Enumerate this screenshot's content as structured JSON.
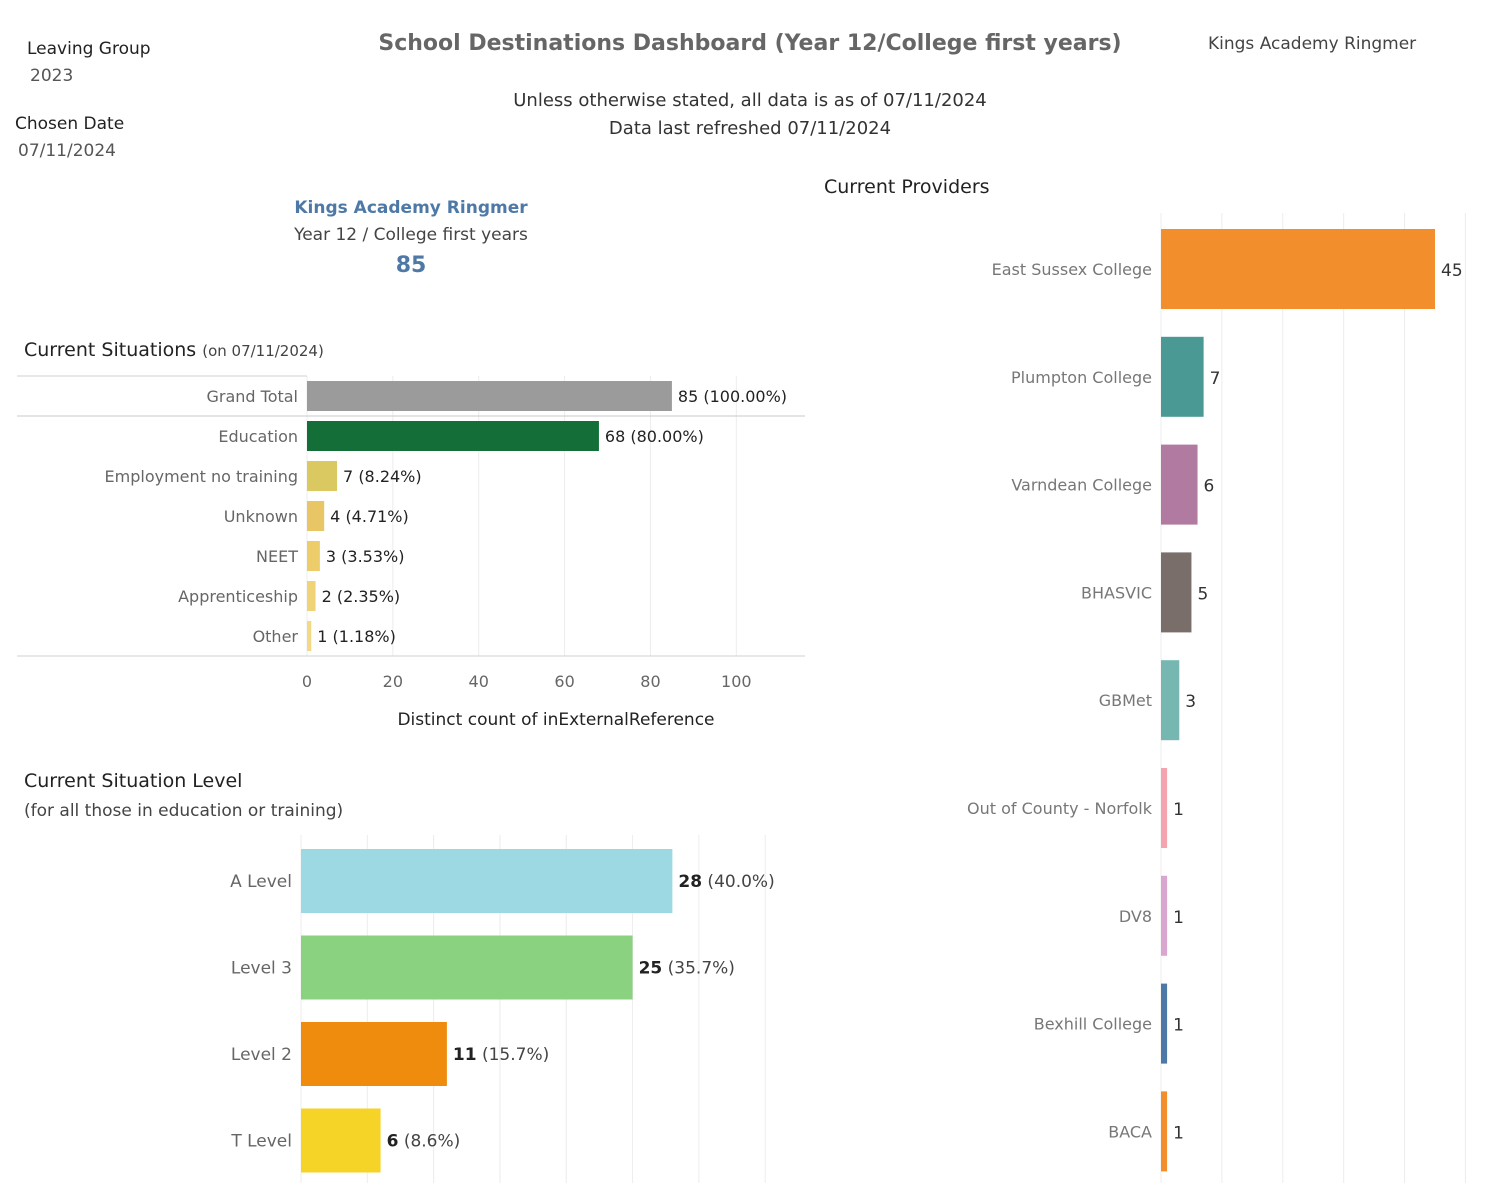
{
  "filters": {
    "leaving_group": {
      "label": "Leaving Group",
      "value": "2023"
    },
    "chosen_date": {
      "label": "Chosen Date",
      "value": "07/11/2024"
    }
  },
  "header": {
    "title": "School Destinations Dashboard (Year 12/College first years)",
    "school": "Kings Academy Ringmer",
    "note_line1": "Unless otherwise stated, all data is as of 07/11/2024",
    "note_line2": "Data last refreshed 07/11/2024"
  },
  "kpi": {
    "school": "Kings Academy Ringmer",
    "label": "Year 12 / College first years",
    "value": "85"
  },
  "situations": {
    "title": "Current Situations",
    "title_note": "(on 07/11/2024)"
  },
  "levels": {
    "title": "Current Situation Level",
    "subtitle": "(for all those in education or training)"
  },
  "providers": {
    "title": "Current Providers"
  },
  "chart_data": [
    {
      "id": "situations",
      "type": "bar",
      "orientation": "horizontal",
      "title": "Current Situations",
      "xlabel": "Distinct count of inExternalReference",
      "xlim": [
        0,
        116
      ],
      "xticks": [
        0,
        20,
        40,
        60,
        80,
        100
      ],
      "xtick_labels": [
        "0",
        "20",
        "40",
        "60",
        "80",
        "100"
      ],
      "grid": true,
      "categories": [
        "Grand Total",
        "Education",
        "Employment no training",
        "Unknown",
        "NEET",
        "Apprenticeship",
        "Other"
      ],
      "values": [
        85,
        68,
        7,
        4,
        3,
        2,
        1
      ],
      "labels": [
        "85 (100.00%)",
        "68 (80.00%)",
        "7 (8.24%)",
        "4 (4.71%)",
        "3 (3.53%)",
        "2 (2.35%)",
        "1 (1.18%)"
      ],
      "colors": [
        "#9b9b9b",
        "#136e37",
        "#d9c960",
        "#e8c665",
        "#eccd6a",
        "#f0d377",
        "#f3d985"
      ]
    },
    {
      "id": "levels",
      "type": "bar",
      "orientation": "horizontal",
      "title": "Current Situation Level",
      "xlim": [
        0,
        38
      ],
      "grid": true,
      "categories": [
        "A Level",
        "Level 3",
        "Level 2",
        "T Level"
      ],
      "values": [
        28,
        25,
        11,
        6
      ],
      "value_labels": [
        "28",
        "25",
        "11",
        "6"
      ],
      "pct_labels": [
        "(40.0%)",
        "(35.7%)",
        "(15.7%)",
        "(8.6%)"
      ],
      "colors": [
        "#9dd9e3",
        "#8ad27f",
        "#ef8b0d",
        "#f5d327"
      ]
    },
    {
      "id": "providers",
      "type": "bar",
      "orientation": "horizontal",
      "title": "Current Providers",
      "xlim": [
        0,
        50
      ],
      "grid": true,
      "categories": [
        "East Sussex College",
        "Plumpton College",
        "Varndean College",
        "BHASVIC",
        "GBMet",
        "Out of County - Norfolk",
        "DV8",
        "Bexhill College",
        "BACA"
      ],
      "values": [
        45,
        7,
        6,
        5,
        3,
        1,
        1,
        1,
        1
      ],
      "value_labels": [
        "45",
        "7",
        "6",
        "5",
        "3",
        "1",
        "1",
        "1",
        "1"
      ],
      "colors": [
        "#f28e2b",
        "#4b9994",
        "#b07aa1",
        "#7a6e6b",
        "#76b7b2",
        "#f4a4ae",
        "#d8a6cf",
        "#4e79a7",
        "#f28e2b"
      ]
    }
  ]
}
